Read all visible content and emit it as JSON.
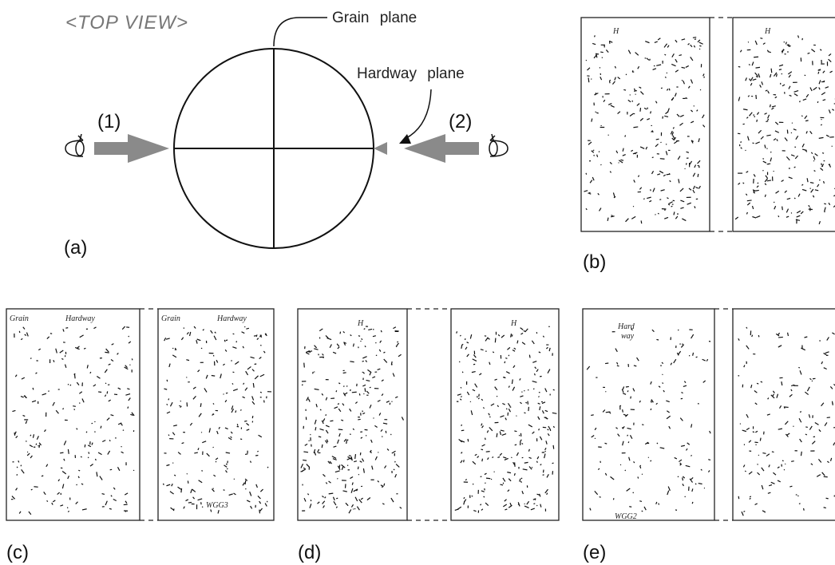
{
  "top_view": {
    "title": "<TOP VIEW>",
    "grain_label": "Grain plane",
    "hardway_label": "Hardway plane",
    "view1": "(1)",
    "view2": "(2)",
    "label": "(a)"
  },
  "panels": [
    {
      "label": "(b)",
      "annotations": [
        "H",
        "H"
      ]
    },
    {
      "label": "(c)",
      "annotations": [
        "Grain",
        "Hardway",
        "Grain",
        "Hardway",
        "WGG3"
      ]
    },
    {
      "label": "(d)",
      "annotations": [
        "H",
        "H"
      ]
    },
    {
      "label": "(e)",
      "annotations": [
        "Hard",
        "way",
        "WGG2"
      ]
    }
  ]
}
